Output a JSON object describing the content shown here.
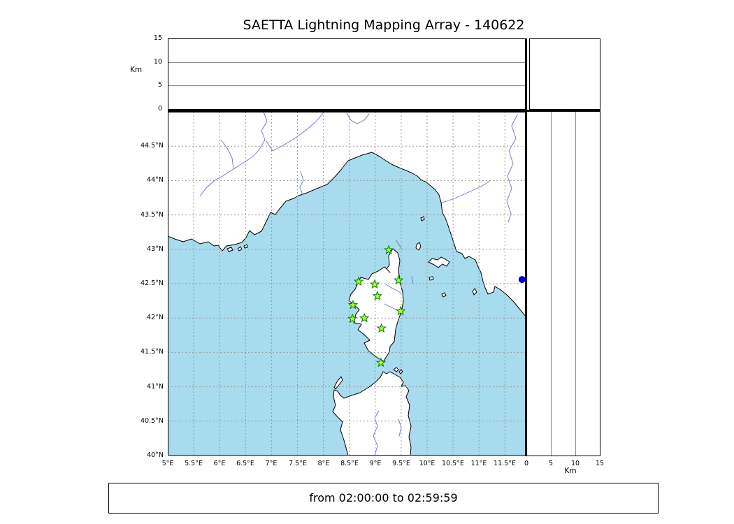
{
  "title": "SAETTA Lightning Mapping Array - 140622",
  "footer": "from 02:00:00 to 02:59:59",
  "chart_data": {
    "type": "scatter",
    "title": "SAETTA Lightning Mapping Array - 140622",
    "subtitle": "from 02:00:00 to 02:59:59",
    "layout": "map with altitude-vs-longitude panel on top, altitude-vs-latitude panel on right, small histogram panel top-right",
    "grid": "dashed 0.5 degree graticule on map, solid gridlines on altitude panels",
    "map_extent": {
      "lon": [
        5,
        11.9
      ],
      "lat": [
        40,
        45
      ]
    },
    "lon_ticks": [
      {
        "v": 5,
        "t": "5°E"
      },
      {
        "v": 5.5,
        "t": "5.5°E"
      },
      {
        "v": 6,
        "t": "6°E"
      },
      {
        "v": 6.5,
        "t": "6.5°E"
      },
      {
        "v": 7,
        "t": "7°E"
      },
      {
        "v": 7.5,
        "t": "7.5°E"
      },
      {
        "v": 8,
        "t": "8°E"
      },
      {
        "v": 8.5,
        "t": "8.5°E"
      },
      {
        "v": 9,
        "t": "9°E"
      },
      {
        "v": 9.5,
        "t": "9.5°E"
      },
      {
        "v": 10,
        "t": "10°E"
      },
      {
        "v": 10.5,
        "t": "10.5°E"
      },
      {
        "v": 11,
        "t": "11°E"
      },
      {
        "v": 11.5,
        "t": "11.5°E"
      }
    ],
    "lat_ticks": [
      {
        "v": 40,
        "t": "40°N"
      },
      {
        "v": 40.5,
        "t": "40.5°N"
      },
      {
        "v": 41,
        "t": "41°N"
      },
      {
        "v": 41.5,
        "t": "41.5°N"
      },
      {
        "v": 42,
        "t": "42°N"
      },
      {
        "v": 42.5,
        "t": "42.5°N"
      },
      {
        "v": 43,
        "t": "43°N"
      },
      {
        "v": 43.5,
        "t": "43.5°N"
      },
      {
        "v": 44,
        "t": "44°N"
      },
      {
        "v": 44.5,
        "t": "44.5°N"
      }
    ],
    "alt_axis": {
      "label": "Km",
      "range": [
        0,
        15
      ],
      "ticks": [
        {
          "v": 0,
          "t": "0"
        },
        {
          "v": 5,
          "t": "5"
        },
        {
          "v": 10,
          "t": "10"
        },
        {
          "v": 15,
          "t": "15"
        }
      ]
    },
    "series": [
      {
        "name": "lma-stations",
        "marker": "star",
        "fill": "#adff2f",
        "edge": "#008000",
        "points": [
          {
            "lon": 9.26,
            "lat": 42.99
          },
          {
            "lon": 8.68,
            "lat": 42.53
          },
          {
            "lon": 8.99,
            "lat": 42.49
          },
          {
            "lon": 9.45,
            "lat": 42.55
          },
          {
            "lon": 9.04,
            "lat": 42.32
          },
          {
            "lon": 8.57,
            "lat": 42.19
          },
          {
            "lon": 9.49,
            "lat": 42.1
          },
          {
            "lon": 8.56,
            "lat": 41.99
          },
          {
            "lon": 8.79,
            "lat": 42.0
          },
          {
            "lon": 9.12,
            "lat": 41.85
          },
          {
            "lon": 9.11,
            "lat": 41.35
          }
        ]
      },
      {
        "name": "event-point",
        "marker": "circle",
        "fill": "#0000cd",
        "radius": 5,
        "points": [
          {
            "lon": 11.83,
            "lat": 42.56
          }
        ]
      }
    ],
    "colors": {
      "sea": "#a7dbed",
      "land": "#ffffff",
      "coast": "#000000",
      "river": "#6673d2",
      "grid": "#9a9a9a"
    }
  }
}
